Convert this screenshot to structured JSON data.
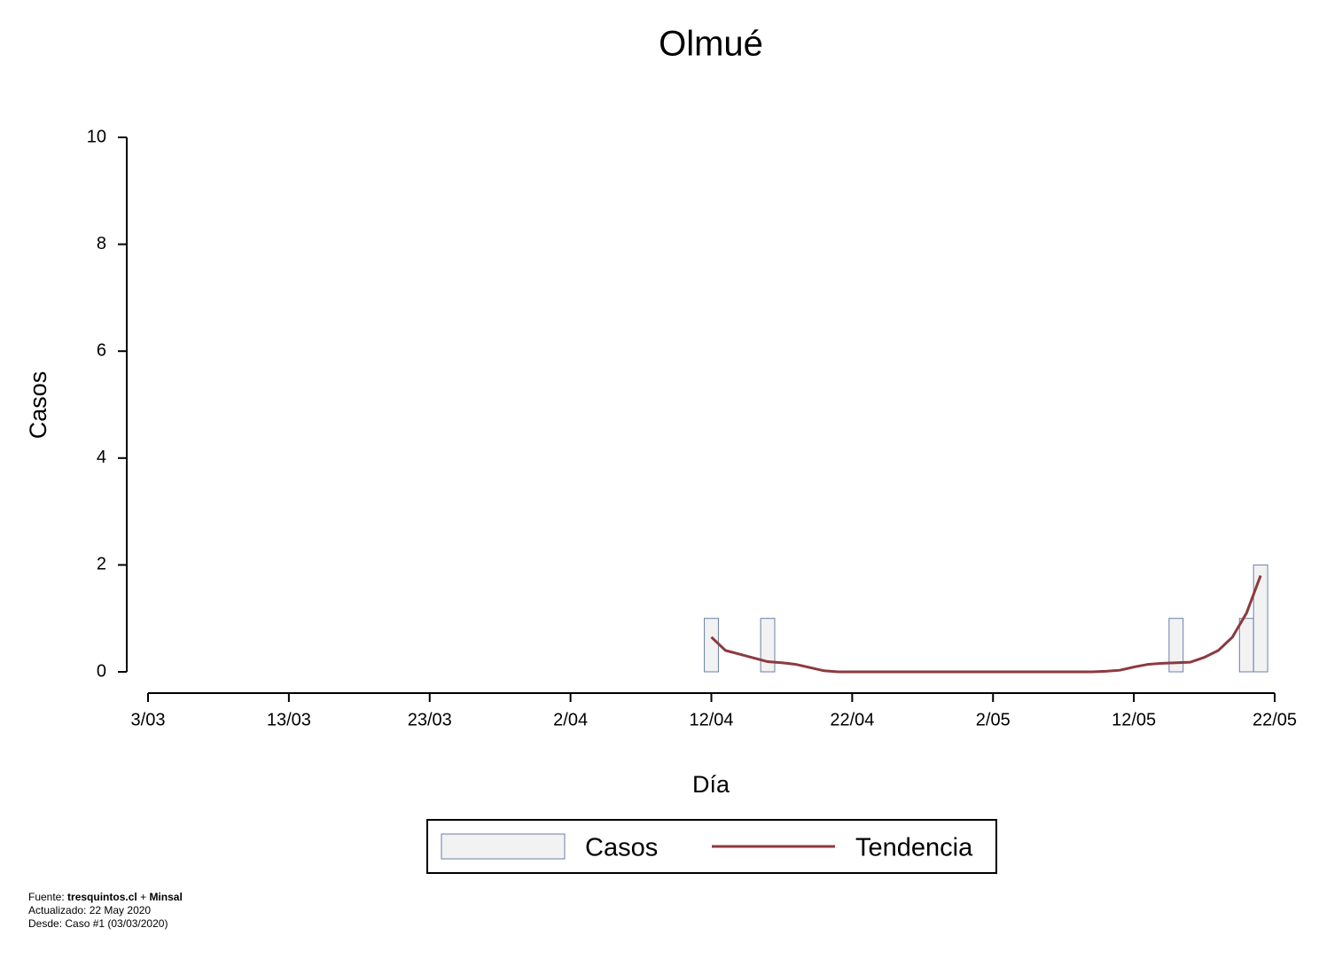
{
  "chart_data": {
    "type": "bar",
    "title": "Olmué",
    "xlabel": "Día",
    "ylabel": "Casos",
    "xlim": [
      "3/03",
      "22/05"
    ],
    "xticks": [
      "3/03",
      "13/03",
      "23/03",
      "2/04",
      "12/04",
      "22/04",
      "2/05",
      "12/05",
      "22/05"
    ],
    "ylim": [
      0,
      10
    ],
    "yticks": [
      0,
      2,
      4,
      6,
      8,
      10
    ],
    "series": [
      {
        "name": "Casos",
        "type": "bar",
        "color": "#f2f2f2",
        "edgecolor": "#6b7fa8",
        "x": [
          "12/04",
          "16/04",
          "15/05",
          "20/05",
          "21/05"
        ],
        "values": [
          1,
          1,
          1,
          1,
          2
        ]
      },
      {
        "name": "Tendencia",
        "type": "line",
        "color": "#8b3a3f",
        "x": [
          "12/04",
          "13/04",
          "14/04",
          "15/04",
          "16/04",
          "17/04",
          "18/04",
          "19/04",
          "20/04",
          "21/04",
          "22/04",
          "23/04",
          "24/04",
          "25/04",
          "26/04",
          "27/04",
          "28/04",
          "29/04",
          "30/04",
          "1/05",
          "2/05",
          "3/05",
          "4/05",
          "5/05",
          "6/05",
          "7/05",
          "8/05",
          "9/05",
          "10/05",
          "11/05",
          "12/05",
          "13/05",
          "14/05",
          "15/05",
          "16/05",
          "17/05",
          "18/05",
          "19/05",
          "20/05",
          "21/05"
        ],
        "values": [
          0.65,
          0.4,
          0.33,
          0.26,
          0.19,
          0.17,
          0.14,
          0.08,
          0.02,
          0,
          0,
          0,
          0,
          0,
          0,
          0,
          0,
          0,
          0,
          0,
          0,
          0,
          0,
          0,
          0,
          0,
          0,
          0,
          0.01,
          0.03,
          0.09,
          0.14,
          0.16,
          0.17,
          0.18,
          0.27,
          0.4,
          0.65,
          1.1,
          1.8
        ]
      }
    ],
    "footer": {
      "source_prefix": "Fuente:",
      "source_1": "tresquintos.cl",
      "source_join": "+",
      "source_2": "Minsal",
      "updated": "Actualizado: 22 May 2020",
      "since": "Desde: Caso #1  (03/03/2020)"
    }
  }
}
